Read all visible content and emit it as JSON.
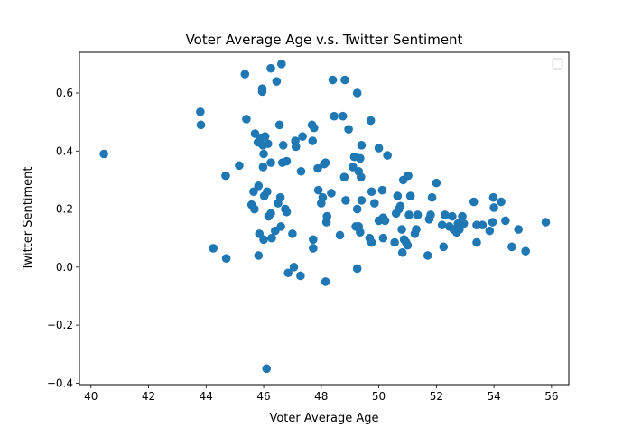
{
  "chart_data": {
    "type": "scatter",
    "title": "Voter Average Age v.s. Twitter Sentiment",
    "xlabel": "Voter Average Age",
    "ylabel": "Twitter Sentiment",
    "xlim": [
      39.6,
      56.6
    ],
    "ylim": [
      -0.405,
      0.74
    ],
    "xticks": [
      40,
      42,
      44,
      46,
      48,
      50,
      52,
      54,
      56
    ],
    "yticks": [
      -0.4,
      -0.2,
      0.0,
      0.2,
      0.4,
      0.6
    ],
    "xtick_labels": [
      "40",
      "42",
      "44",
      "46",
      "48",
      "50",
      "52",
      "54",
      "56"
    ],
    "ytick_labels": [
      "−0.4",
      "−0.2",
      "0.0",
      "0.2",
      "0.4",
      "0.6"
    ],
    "grid": false,
    "legend": {
      "placement": "top-right",
      "entries": []
    },
    "point_color": "#1f77b4",
    "points": [
      [
        40.45,
        0.39
      ],
      [
        43.8,
        0.535
      ],
      [
        43.82,
        0.49
      ],
      [
        44.25,
        0.065
      ],
      [
        44.68,
        0.315
      ],
      [
        44.7,
        0.03
      ],
      [
        45.15,
        0.35
      ],
      [
        45.35,
        0.665
      ],
      [
        45.4,
        0.51
      ],
      [
        45.58,
        0.215
      ],
      [
        45.65,
        0.26
      ],
      [
        45.68,
        0.2
      ],
      [
        45.7,
        0.46
      ],
      [
        45.8,
        0.43
      ],
      [
        45.82,
        0.04
      ],
      [
        45.82,
        0.28
      ],
      [
        45.85,
        0.115
      ],
      [
        45.9,
        0.445
      ],
      [
        45.95,
        0.615
      ],
      [
        45.95,
        0.605
      ],
      [
        45.97,
        0.42
      ],
      [
        45.98,
        0.345
      ],
      [
        46.0,
        0.095
      ],
      [
        46.0,
        0.39
      ],
      [
        46.02,
        0.245
      ],
      [
        46.05,
        0.45
      ],
      [
        46.1,
        -0.35
      ],
      [
        46.12,
        0.26
      ],
      [
        46.15,
        0.425
      ],
      [
        46.17,
        0.175
      ],
      [
        46.25,
        0.685
      ],
      [
        46.25,
        0.36
      ],
      [
        46.25,
        0.185
      ],
      [
        46.28,
        0.1
      ],
      [
        46.4,
        0.125
      ],
      [
        46.45,
        0.64
      ],
      [
        46.5,
        0.22
      ],
      [
        46.55,
        0.49
      ],
      [
        46.58,
        0.24
      ],
      [
        46.62,
        0.7
      ],
      [
        46.6,
        0.14
      ],
      [
        46.65,
        0.36
      ],
      [
        46.68,
        0.42
      ],
      [
        46.75,
        0.2
      ],
      [
        46.8,
        0.365
      ],
      [
        46.8,
        0.19
      ],
      [
        46.85,
        -0.02
      ],
      [
        47.0,
        0.115
      ],
      [
        47.05,
        0.0
      ],
      [
        47.1,
        0.435
      ],
      [
        47.12,
        0.415
      ],
      [
        47.28,
        -0.03
      ],
      [
        47.3,
        0.33
      ],
      [
        47.35,
        0.45
      ],
      [
        47.68,
        0.49
      ],
      [
        47.7,
        0.435
      ],
      [
        47.72,
        0.095
      ],
      [
        47.72,
        0.065
      ],
      [
        47.75,
        0.48
      ],
      [
        47.88,
        0.34
      ],
      [
        47.9,
        0.265
      ],
      [
        48.0,
        0.22
      ],
      [
        48.05,
        0.24
      ],
      [
        48.1,
        0.355
      ],
      [
        48.15,
        0.36
      ],
      [
        48.15,
        -0.05
      ],
      [
        48.18,
        0.155
      ],
      [
        48.2,
        0.175
      ],
      [
        48.35,
        0.255
      ],
      [
        48.4,
        0.645
      ],
      [
        48.45,
        0.52
      ],
      [
        48.65,
        0.11
      ],
      [
        48.75,
        0.52
      ],
      [
        48.8,
        0.31
      ],
      [
        48.82,
        0.645
      ],
      [
        48.85,
        0.23
      ],
      [
        48.95,
        0.475
      ],
      [
        49.1,
        0.345
      ],
      [
        49.15,
        0.38
      ],
      [
        49.2,
        0.14
      ],
      [
        49.25,
        0.6
      ],
      [
        49.25,
        0.2
      ],
      [
        49.25,
        -0.005
      ],
      [
        49.3,
        0.33
      ],
      [
        49.3,
        0.14
      ],
      [
        49.35,
        0.375
      ],
      [
        49.35,
        0.12
      ],
      [
        49.38,
        0.31
      ],
      [
        49.4,
        0.42
      ],
      [
        49.4,
        0.23
      ],
      [
        49.68,
        0.1
      ],
      [
        49.72,
        0.505
      ],
      [
        49.75,
        0.085
      ],
      [
        49.75,
        0.26
      ],
      [
        49.85,
        0.22
      ],
      [
        50.0,
        0.41
      ],
      [
        50.0,
        0.16
      ],
      [
        50.12,
        0.265
      ],
      [
        50.15,
        0.1
      ],
      [
        50.15,
        0.17
      ],
      [
        50.22,
        0.16
      ],
      [
        50.3,
        0.385
      ],
      [
        50.55,
        0.085
      ],
      [
        50.6,
        0.185
      ],
      [
        50.65,
        0.245
      ],
      [
        50.7,
        0.2
      ],
      [
        50.75,
        0.21
      ],
      [
        50.8,
        0.13
      ],
      [
        50.82,
        0.05
      ],
      [
        50.85,
        0.3
      ],
      [
        50.88,
        0.095
      ],
      [
        50.95,
        0.085
      ],
      [
        51.0,
        0.075
      ],
      [
        51.02,
        0.315
      ],
      [
        51.05,
        0.18
      ],
      [
        51.1,
        0.245
      ],
      [
        51.25,
        0.115
      ],
      [
        51.3,
        0.13
      ],
      [
        51.35,
        0.18
      ],
      [
        51.7,
        0.04
      ],
      [
        51.75,
        0.165
      ],
      [
        51.8,
        0.18
      ],
      [
        51.85,
        0.24
      ],
      [
        52.0,
        0.29
      ],
      [
        52.2,
        0.145
      ],
      [
        52.25,
        0.07
      ],
      [
        52.3,
        0.18
      ],
      [
        52.45,
        0.14
      ],
      [
        52.55,
        0.175
      ],
      [
        52.6,
        0.13
      ],
      [
        52.7,
        0.12
      ],
      [
        52.75,
        0.15
      ],
      [
        52.8,
        0.13
      ],
      [
        52.9,
        0.175
      ],
      [
        52.95,
        0.15
      ],
      [
        53.3,
        0.225
      ],
      [
        53.4,
        0.145
      ],
      [
        53.4,
        0.085
      ],
      [
        53.6,
        0.145
      ],
      [
        53.85,
        0.125
      ],
      [
        53.95,
        0.155
      ],
      [
        53.98,
        0.24
      ],
      [
        54.0,
        0.205
      ],
      [
        54.25,
        0.225
      ],
      [
        54.4,
        0.16
      ],
      [
        54.62,
        0.07
      ],
      [
        54.85,
        0.13
      ],
      [
        55.1,
        0.055
      ],
      [
        55.8,
        0.155
      ]
    ]
  }
}
